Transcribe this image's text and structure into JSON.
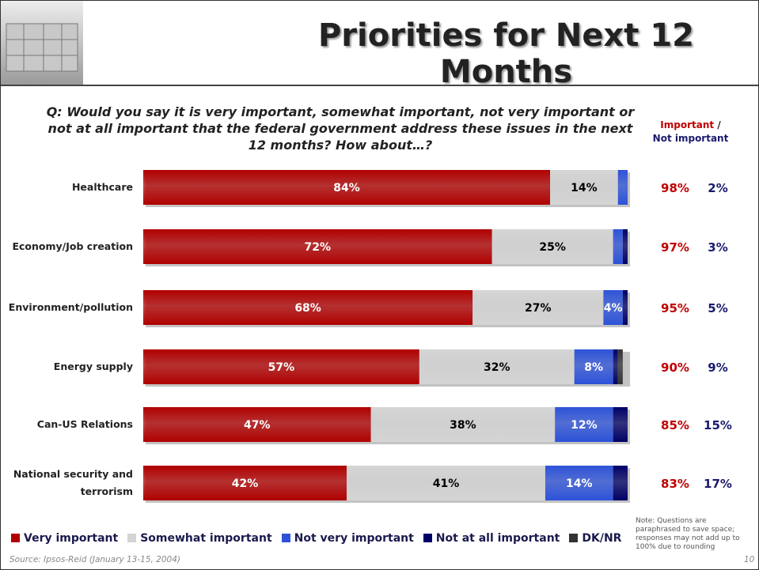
{
  "chart_data": {
    "type": "bar",
    "orientation": "horizontal",
    "stacked": true,
    "title": "Priorities for Next 12 Months",
    "question": "Q:  Would you say it is very important, somewhat important, not very important or not at all important that the federal government address these issues in the next 12 months?  How about…?",
    "categories": [
      "Healthcare",
      "Economy/Job creation",
      "Environment/pollution",
      "Energy supply",
      "Can-US Relations",
      "National security and terrorism"
    ],
    "xlim": [
      0,
      100
    ],
    "series": [
      {
        "name": "Very important",
        "color": "#b00000",
        "label_color": "#ffffff",
        "values": [
          84,
          72,
          68,
          57,
          47,
          42
        ],
        "value_labels": [
          "84%",
          "72%",
          "68%",
          "57%",
          "47%",
          "42%"
        ]
      },
      {
        "name": "Somewhat important",
        "color": "#d4d4d4",
        "label_color": "#000000",
        "values": [
          14,
          25,
          27,
          32,
          38,
          41
        ],
        "value_labels": [
          "14%",
          "25%",
          "27%",
          "32%",
          "38%",
          "41%"
        ]
      },
      {
        "name": "Not very important",
        "color": "#2d52d8",
        "label_color": "#ffffff",
        "values": [
          2,
          2,
          4,
          8,
          12,
          14
        ],
        "value_labels": [
          null,
          null,
          "4%",
          "8%",
          "12%",
          "14%"
        ]
      },
      {
        "name": "Not at all important",
        "color": "#000066",
        "label_color": "#ffffff",
        "values": [
          0,
          1,
          1,
          1,
          3,
          3
        ],
        "value_labels": [
          null,
          null,
          null,
          null,
          null,
          null
        ]
      },
      {
        "name": "DK/NR",
        "color": "#333333",
        "label_color": "#ffffff",
        "values": [
          0,
          0,
          0,
          1,
          0,
          0
        ],
        "value_labels": [
          null,
          null,
          null,
          null,
          null,
          null
        ]
      }
    ],
    "important": {
      "label": "Important",
      "color": "#c00000",
      "values": [
        98,
        97,
        95,
        90,
        85,
        83
      ],
      "value_labels": [
        "98%",
        "97%",
        "95%",
        "90%",
        "85%",
        "83%"
      ]
    },
    "separator": "/",
    "not_important": {
      "label": "Not important",
      "color": "#1a1a6e",
      "values": [
        2,
        3,
        5,
        9,
        15,
        17
      ],
      "value_labels": [
        "2%",
        "3%",
        "5%",
        "9%",
        "15%",
        "17%"
      ]
    },
    "note": "Note:  Questions are paraphrased to save space; responses may not add up to 100% due to rounding",
    "source": "Source: Ipsos-Reid (January 13-15, 2004)",
    "page_number": "10"
  }
}
